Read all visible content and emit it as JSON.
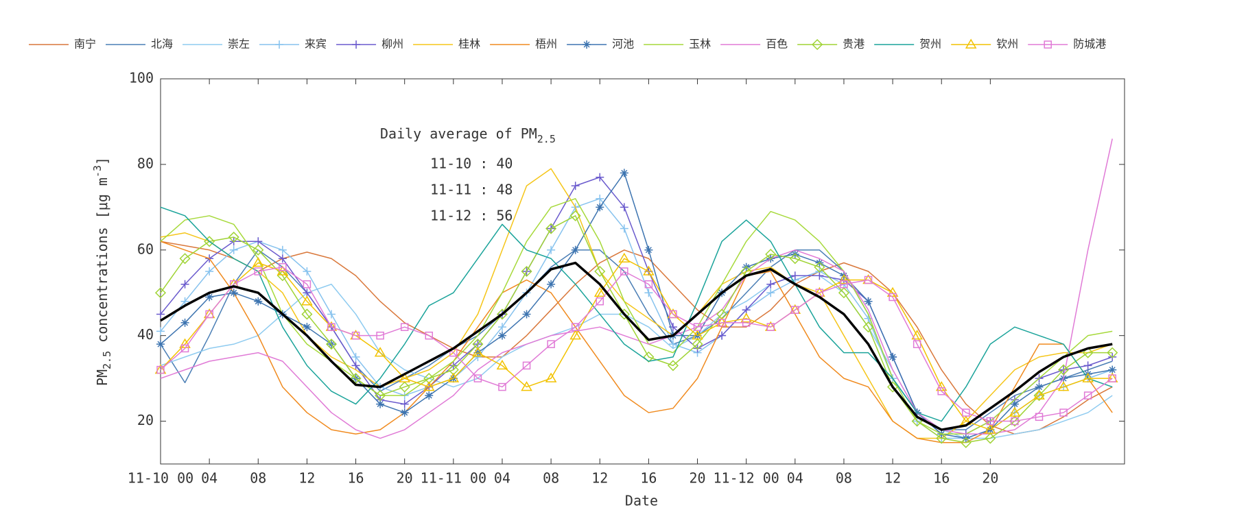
{
  "chart_data": {
    "type": "line",
    "x_label": "Date",
    "y_label": {
      "text": "PM",
      "subscript": "2.5",
      "text2": " concentrations [μg m",
      "superscript": "-3",
      "text3": "]"
    },
    "annotation": {
      "text": "Daily average of PM",
      "subscript": "2.5",
      "lines": [
        "11-10 : 40",
        "11-11 : 48",
        "11-12 : 56"
      ]
    },
    "x": [
      0,
      2,
      4,
      6,
      8,
      10,
      12,
      14,
      16,
      18,
      20,
      22,
      24,
      26,
      28,
      30,
      32,
      34,
      36,
      38,
      40,
      42,
      44,
      46,
      48,
      50,
      52,
      54,
      56,
      58,
      60,
      62,
      64,
      66,
      68,
      70,
      72,
      74,
      76,
      78
    ],
    "xlim": [
      0,
      79
    ],
    "xticks": [
      {
        "value": 0,
        "label": "11-10 00"
      },
      {
        "value": 4,
        "label": "04"
      },
      {
        "value": 8,
        "label": "08"
      },
      12,
      16,
      20,
      {
        "value": 24,
        "label": "11-11 00"
      },
      {
        "value": 28,
        "label": "04"
      },
      {
        "value": 32,
        "label": "08"
      },
      {
        "value": 36,
        "label": "12"
      },
      {
        "value": 40,
        "label": "16"
      },
      {
        "value": 44,
        "label": "20"
      },
      {
        "value": 48,
        "label": "11-12 00"
      },
      {
        "value": 52,
        "label": "04"
      },
      {
        "value": 56,
        "label": "08"
      },
      {
        "value": 60,
        "label": "12"
      },
      {
        "value": 64,
        "label": "16"
      },
      {
        "value": 68,
        "label": "20"
      }
    ],
    "ylim": [
      10,
      100
    ],
    "yticks": [
      20,
      40,
      60,
      80,
      100
    ],
    "series": [
      {
        "name": "南宁",
        "color": "#d9773a",
        "marker": "none",
        "values": [
          62,
          61,
          60,
          58,
          55,
          58,
          59.5,
          58,
          54,
          48,
          43,
          40,
          37,
          35,
          35,
          40,
          46,
          52,
          57,
          60,
          58,
          52,
          46,
          42,
          42,
          46,
          52,
          55,
          57,
          55,
          50,
          42,
          32,
          24,
          19,
          17,
          18,
          21,
          25,
          28
        ]
      },
      {
        "name": "北海",
        "color": "#4a7eb5",
        "marker": "none",
        "values": [
          38,
          29,
          40,
          52,
          60,
          56,
          50,
          42,
          33,
          27,
          30,
          33,
          37,
          40,
          45,
          50,
          56,
          60,
          60,
          55,
          45,
          38,
          40,
          44,
          50,
          56,
          60,
          60,
          55,
          45,
          30,
          22,
          18,
          18,
          22,
          26,
          28,
          30,
          32,
          34
        ]
      },
      {
        "name": "崇左",
        "color": "#8ecbf0",
        "marker": "none",
        "values": [
          33,
          35,
          37,
          38,
          40,
          45,
          50,
          52,
          45,
          36,
          32,
          30,
          28,
          30,
          35,
          38,
          40,
          42,
          45,
          45,
          42,
          37,
          40,
          45,
          48,
          52,
          54,
          54,
          50,
          42,
          32,
          22,
          18,
          16,
          16,
          17,
          18,
          20,
          22,
          26
        ]
      },
      {
        "name": "来宾",
        "color": "#86c2ee",
        "marker": "plus",
        "values": [
          41,
          48,
          55,
          60,
          62,
          60,
          55,
          45,
          35,
          28,
          26,
          28,
          30,
          35,
          42,
          50,
          60,
          70,
          72,
          65,
          50,
          38,
          36,
          40,
          46,
          50,
          53,
          55,
          52,
          44,
          30,
          20,
          16,
          16,
          18,
          22,
          26,
          28,
          30,
          32
        ]
      },
      {
        "name": "柳州",
        "color": "#6a5acd",
        "marker": "plus",
        "values": [
          45,
          52,
          58,
          62,
          62,
          58,
          50,
          42,
          33,
          25,
          24,
          28,
          33,
          38,
          45,
          55,
          65,
          75,
          77,
          70,
          55,
          42,
          37,
          40,
          46,
          52,
          54,
          54,
          53,
          48,
          35,
          22,
          17,
          17,
          20,
          25,
          30,
          32,
          33,
          35
        ]
      },
      {
        "name": "桂林",
        "color": "#f5c518",
        "marker": "none",
        "values": [
          63,
          64,
          62,
          58,
          55,
          50,
          40,
          35,
          32,
          28,
          30,
          32,
          36,
          45,
          60,
          75,
          79,
          70,
          55,
          48,
          44,
          40,
          45,
          52,
          55,
          56,
          52,
          50,
          40,
          30,
          20,
          16,
          16,
          20,
          26,
          32,
          35,
          36,
          36,
          38
        ]
      },
      {
        "name": "梧州",
        "color": "#f08a1e",
        "marker": "none",
        "values": [
          62,
          60,
          58,
          50,
          40,
          28,
          22,
          18,
          17,
          18,
          22,
          28,
          34,
          42,
          50,
          53,
          50,
          42,
          34,
          26,
          22,
          23,
          30,
          42,
          54,
          55,
          45,
          35,
          30,
          28,
          20,
          16,
          15,
          15,
          18,
          28,
          38,
          38,
          30,
          22
        ]
      },
      {
        "name": "河池",
        "color": "#3d74b0",
        "marker": "star",
        "values": [
          38,
          43,
          49,
          50,
          48,
          45,
          42,
          38,
          30,
          24,
          22,
          26,
          30,
          36,
          40,
          45,
          52,
          60,
          70,
          78,
          60,
          40,
          40,
          50,
          56,
          58,
          59,
          57,
          54,
          48,
          35,
          22,
          17,
          16,
          18,
          24,
          28,
          30,
          31,
          32
        ]
      },
      {
        "name": "玉林",
        "color": "#a6d93a",
        "marker": "none",
        "values": [
          62,
          67,
          68,
          66,
          58,
          45,
          38,
          34,
          30,
          26,
          26,
          30,
          34,
          40,
          50,
          62,
          70,
          72,
          62,
          48,
          38,
          36,
          42,
          52,
          62,
          69,
          67,
          62,
          55,
          45,
          30,
          20,
          17,
          17,
          20,
          25,
          30,
          35,
          40,
          41
        ]
      },
      {
        "name": "百色",
        "color": "#e07ad6",
        "marker": "none",
        "values": [
          30,
          32,
          34,
          35,
          36,
          34,
          28,
          22,
          18,
          16,
          18,
          22,
          26,
          32,
          36,
          38,
          40,
          41,
          42,
          40,
          38,
          40,
          42,
          46,
          54,
          58,
          60,
          58,
          55,
          46,
          32,
          22,
          18,
          17,
          17,
          18,
          22,
          30,
          60,
          86
        ]
      },
      {
        "name": "贵港",
        "color": "#9fd334",
        "marker": "diamond",
        "values": [
          50,
          58,
          62,
          63,
          60,
          54,
          45,
          38,
          30,
          26,
          28,
          30,
          32,
          38,
          45,
          55,
          65,
          68,
          55,
          45,
          35,
          33,
          38,
          45,
          55,
          59,
          58,
          56,
          50,
          42,
          28,
          20,
          16,
          15,
          16,
          20,
          26,
          32,
          36,
          36
        ]
      },
      {
        "name": "贺州",
        "color": "#1aa39a",
        "marker": "none",
        "values": [
          70,
          68,
          62,
          58,
          55,
          42,
          33,
          27,
          24,
          30,
          38,
          47,
          50,
          58,
          66,
          60,
          58,
          52,
          45,
          38,
          34,
          35,
          48,
          62,
          67,
          62,
          52,
          42,
          36,
          36,
          30,
          22,
          20,
          28,
          38,
          42,
          40,
          38,
          30,
          28
        ]
      },
      {
        "name": "钦州",
        "color": "#f2c200",
        "marker": "triangle",
        "values": [
          32,
          38,
          45,
          52,
          57,
          55,
          48,
          42,
          40,
          36,
          30,
          28,
          30,
          36,
          33,
          28,
          30,
          40,
          50,
          58,
          55,
          45,
          40,
          43,
          44,
          42,
          46,
          50,
          53,
          53,
          50,
          40,
          28,
          20,
          18,
          22,
          26,
          28,
          30,
          30
        ]
      },
      {
        "name": "防城港",
        "color": "#e07ad6",
        "marker": "square",
        "values": [
          32,
          37,
          45,
          52,
          55,
          56,
          52,
          42,
          40,
          40,
          42,
          40,
          36,
          30,
          28,
          33,
          38,
          42,
          48,
          55,
          52,
          45,
          42,
          43,
          43,
          42,
          46,
          50,
          52,
          53,
          49,
          38,
          27,
          22,
          20,
          20,
          21,
          22,
          26,
          30
        ]
      },
      {
        "color": "#000000",
        "marker": "none",
        "width": 3.5,
        "values": [
          43.5,
          47,
          50,
          51.5,
          50,
          45,
          40,
          34,
          28.5,
          28,
          31,
          34,
          37,
          41,
          45,
          50,
          55.5,
          57,
          52,
          45,
          39,
          40,
          45,
          50,
          54,
          55.5,
          52,
          49,
          45,
          38,
          28,
          21,
          18,
          19,
          23,
          27,
          31.5,
          35,
          37,
          38
        ]
      }
    ]
  }
}
